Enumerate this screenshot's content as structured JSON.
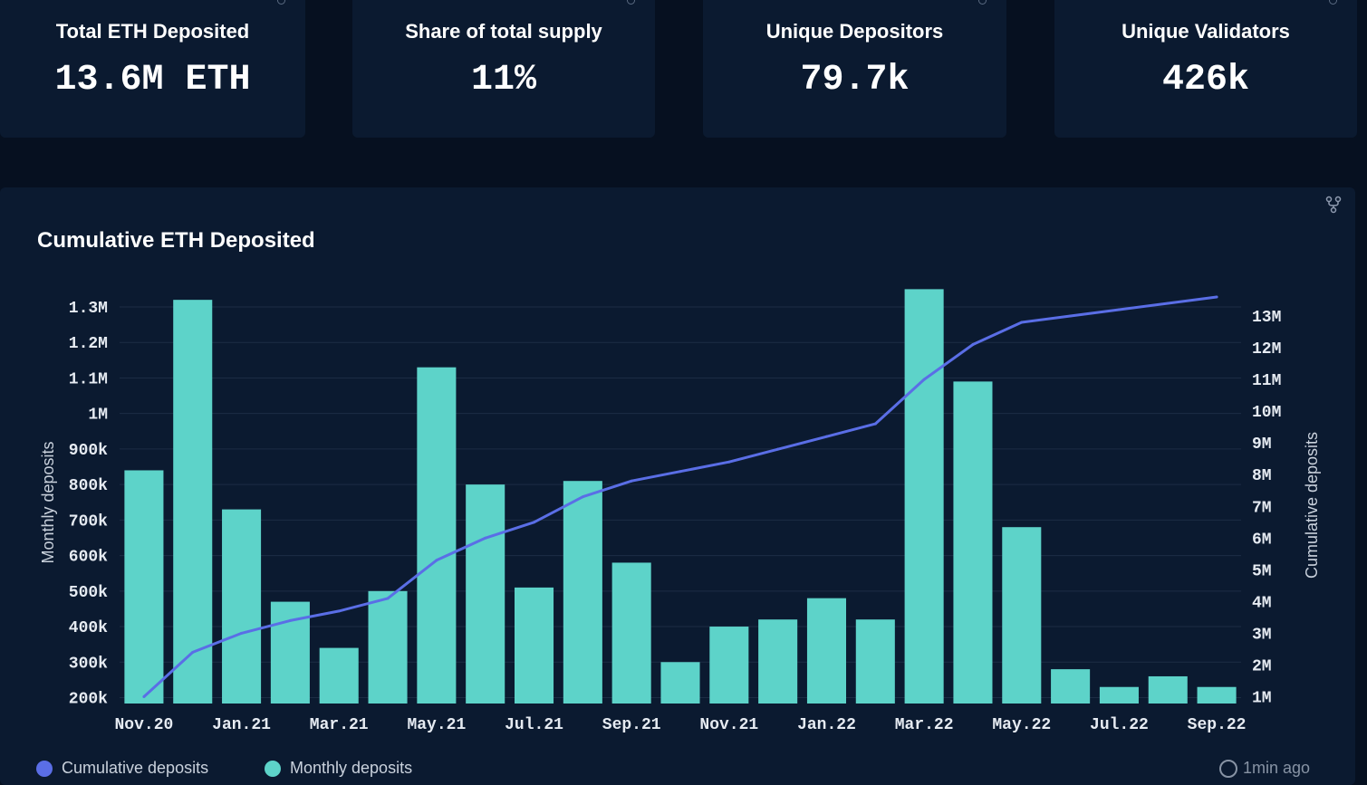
{
  "stats": [
    {
      "label": "Total ETH Deposited",
      "value": "13.6M ETH"
    },
    {
      "label": "Share of total supply",
      "value": "11%"
    },
    {
      "label": "Unique Depositors",
      "value": "79.7k"
    },
    {
      "label": "Unique Validators",
      "value": "426k"
    }
  ],
  "chart_title": "Cumulative ETH Deposited",
  "legend": {
    "cumulative": "Cumulative deposits",
    "monthly": "Monthly deposits"
  },
  "updated": "1min ago",
  "colors": {
    "bar": "#5dd3c9",
    "line": "#5a6ee6",
    "grid": "#1c2c44"
  },
  "chart_data": {
    "type": "bar+line",
    "title": "Cumulative ETH Deposited",
    "ylabel_left": "Monthly deposits",
    "ylabel_right": "Cumulative deposits",
    "categories": [
      "Nov.20",
      "Dec.20",
      "Jan.21",
      "Feb.21",
      "Mar.21",
      "Apr.21",
      "May.21",
      "Jun.21",
      "Jul.21",
      "Aug.21",
      "Sep.21",
      "Oct.21",
      "Nov.21",
      "Dec.21",
      "Jan.22",
      "Feb.22",
      "Mar.22",
      "Apr.22",
      "May.22",
      "Jun.22",
      "Jul.22",
      "Aug.22",
      "Sep.22"
    ],
    "x_tick_labels": [
      "Nov.20",
      "Jan.21",
      "Mar.21",
      "May.21",
      "Jul.21",
      "Sep.21",
      "Nov.21",
      "Jan.22",
      "Mar.22",
      "May.22",
      "Jul.22",
      "Sep.22"
    ],
    "series": [
      {
        "name": "Monthly deposits",
        "type": "bar",
        "axis": "left",
        "values": [
          840000,
          1320000,
          730000,
          470000,
          340000,
          500000,
          1130000,
          800000,
          510000,
          810000,
          580000,
          300000,
          400000,
          420000,
          480000,
          420000,
          1350000,
          1090000,
          680000,
          280000,
          230000,
          260000,
          230000
        ]
      },
      {
        "name": "Cumulative deposits",
        "type": "line",
        "axis": "right",
        "values": [
          1000000,
          2400000,
          3000000,
          3400000,
          3700000,
          4100000,
          5300000,
          6000000,
          6500000,
          7300000,
          7800000,
          8100000,
          8400000,
          8800000,
          9200000,
          9600000,
          11000000,
          12100000,
          12800000,
          13000000,
          13200000,
          13400000,
          13600000
        ]
      }
    ],
    "ylim_left": [
      200000,
      1350000
    ],
    "yticks_left": [
      "200k",
      "300k",
      "400k",
      "500k",
      "600k",
      "700k",
      "800k",
      "900k",
      "1M",
      "1.1M",
      "1.2M",
      "1.3M"
    ],
    "yticks_left_values": [
      200000,
      300000,
      400000,
      500000,
      600000,
      700000,
      800000,
      900000,
      1000000,
      1100000,
      1200000,
      1300000
    ],
    "ylim_right": [
      1000000,
      13600000
    ],
    "yticks_right": [
      "1M",
      "2M",
      "3M",
      "4M",
      "5M",
      "6M",
      "7M",
      "8M",
      "9M",
      "10M",
      "11M",
      "12M",
      "13M"
    ],
    "yticks_right_values": [
      1000000,
      2000000,
      3000000,
      4000000,
      5000000,
      6000000,
      7000000,
      8000000,
      9000000,
      10000000,
      11000000,
      12000000,
      13000000
    ],
    "grid": true,
    "legend_position": "bottom-left"
  }
}
